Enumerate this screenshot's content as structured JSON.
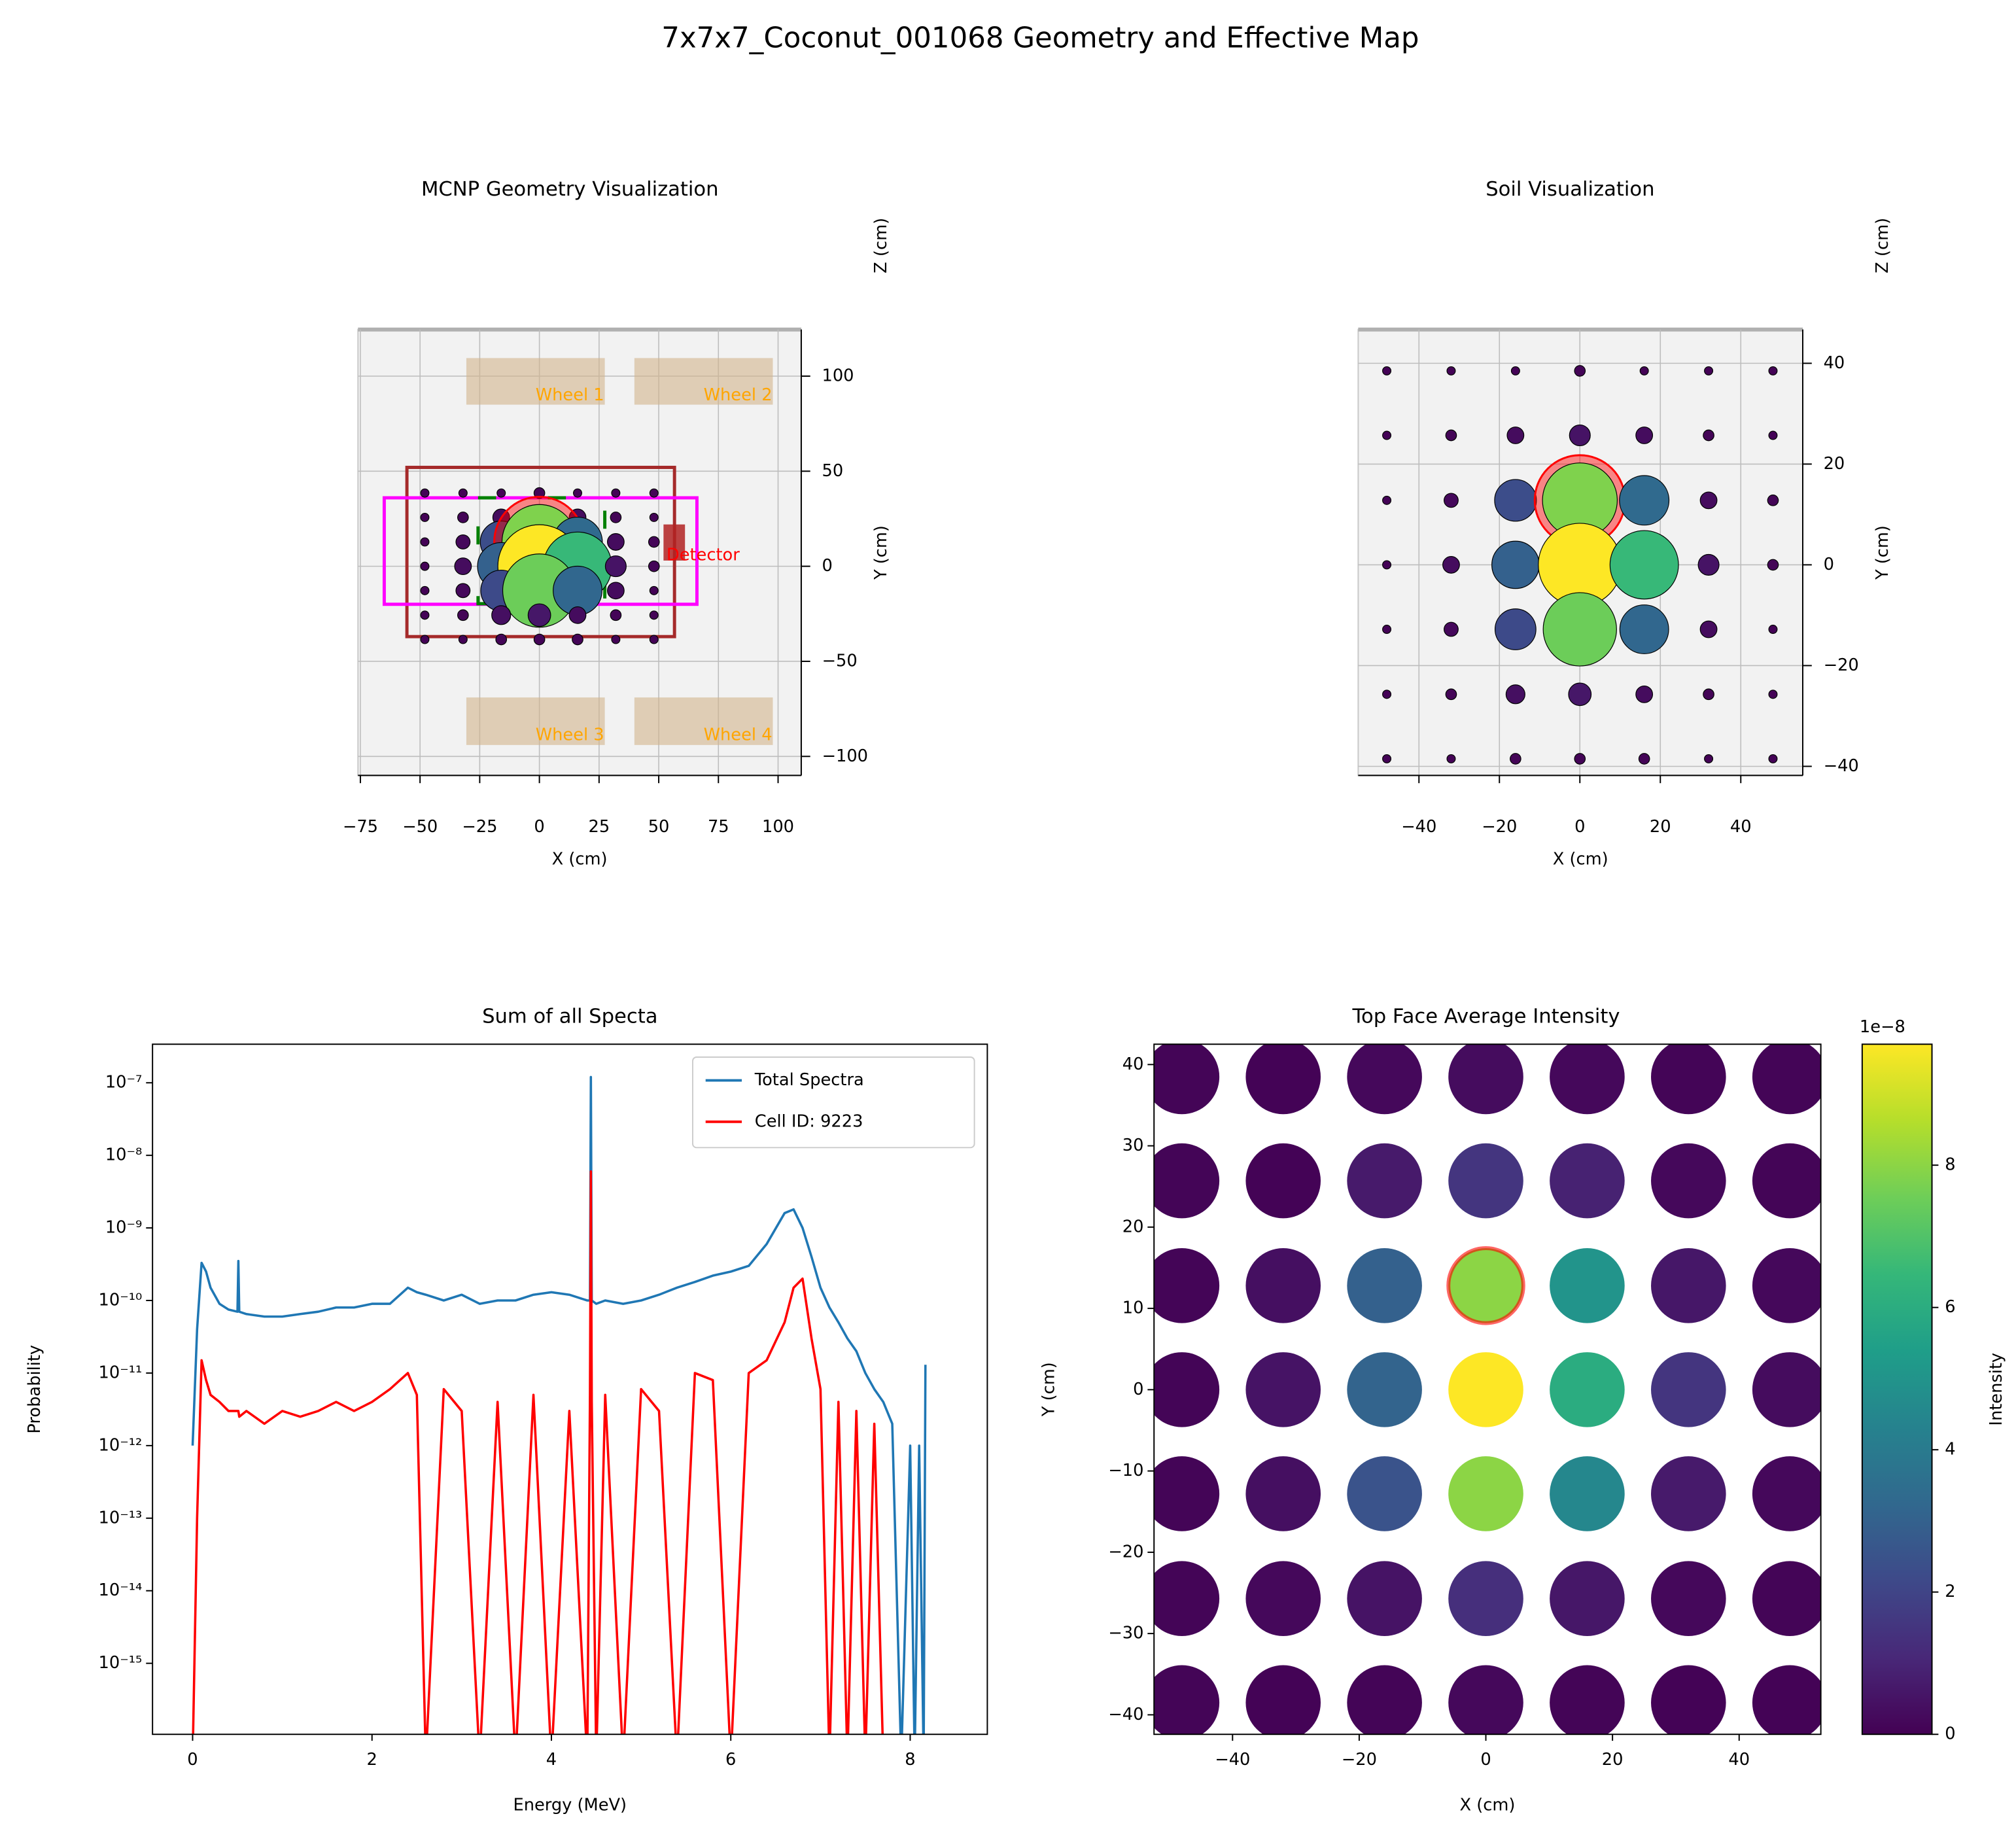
{
  "title": "7x7x7_Coconut_001068 Geometry and Effective Map",
  "chart_data": [
    {
      "type": "geometry",
      "title": "MCNP Geometry Visualization",
      "x_label": "X (cm)",
      "y_label": "Y (cm)",
      "z_label": "Z (cm)",
      "xlim": [
        -76,
        109.7
      ],
      "ylim": [
        -110,
        124.5
      ],
      "xticks": [
        {
          "value": -75,
          "label": "−75"
        },
        {
          "value": -50,
          "label": "−50"
        },
        {
          "value": -25,
          "label": "−25"
        },
        0,
        25,
        50,
        75,
        100
      ],
      "yticks": [
        100,
        50,
        0,
        {
          "value": -50,
          "label": "−50"
        },
        {
          "value": -100,
          "label": "−100"
        }
      ],
      "grid": true,
      "wheel_color": "#d2b48c",
      "wheel_label_color": "#ffa500",
      "wheels": [
        {
          "label": "Wheel 1",
          "x": [
            -30.6,
            27.4
          ],
          "y": [
            85,
            109.5
          ]
        },
        {
          "label": "Wheel 2",
          "x": [
            39.8,
            97.8
          ],
          "y": [
            85,
            109.5
          ]
        },
        {
          "label": "Wheel 3",
          "x": [
            -30.6,
            27.4
          ],
          "y": [
            -94,
            -69
          ]
        },
        {
          "label": "Wheel 4",
          "x": [
            39.8,
            97.8
          ],
          "y": [
            -94,
            -69
          ]
        }
      ],
      "regions": [
        {
          "color": "#a52a2a",
          "x": [
            -55.5,
            56.6
          ],
          "y": [
            -37,
            52
          ]
        },
        {
          "color": "#ff00ff",
          "x": [
            -65,
            66
          ],
          "y": [
            -20,
            36
          ]
        },
        {
          "color": "#008000",
          "x": [
            -25.7,
            27.4
          ],
          "y": [
            -19.7,
            36
          ],
          "dashed": true
        }
      ],
      "detector": {
        "label": "Detector",
        "color": "#b22222",
        "label_color": "#ff0000",
        "x": [
          52,
          61
        ],
        "y": [
          3,
          22
        ]
      },
      "x": [
        -48,
        -32,
        -16,
        0,
        16,
        32,
        48
      ],
      "y": [
        38.5,
        25.7,
        12.8,
        0,
        -12.8,
        -25.7,
        -38.5
      ],
      "values": [
        [
          0.05,
          0.05,
          0.05,
          0.1,
          0.05,
          0.05,
          0.05
        ],
        [
          0.05,
          0.1,
          0.3,
          0.5,
          0.3,
          0.1,
          0.05
        ],
        [
          0.05,
          0.2,
          2.3,
          7.8,
          3.3,
          0.3,
          0.1
        ],
        [
          0.05,
          0.3,
          3.0,
          9.7,
          6.5,
          0.5,
          0.1
        ],
        [
          0.05,
          0.2,
          2.2,
          7.5,
          3.2,
          0.3,
          0.05
        ],
        [
          0.05,
          0.1,
          0.4,
          0.6,
          0.3,
          0.1,
          0.05
        ],
        [
          0.05,
          0.05,
          0.1,
          0.1,
          0.1,
          0.05,
          0.05
        ]
      ],
      "clim": [
        0,
        9.7
      ],
      "colormap": "viridis",
      "highlight": {
        "row": 2,
        "col": 3,
        "color": "#ff0000"
      }
    },
    {
      "type": "soil",
      "title": "Soil Visualization",
      "x_label": "X (cm)",
      "y_label": "Y (cm)",
      "z_label": "Z (cm)",
      "xlim": [
        -55.1,
        55.4
      ],
      "ylim": [
        -41.8,
        46.7
      ],
      "xticks": [
        {
          "value": -40,
          "label": "−40"
        },
        {
          "value": -20,
          "label": "−20"
        },
        0,
        20,
        40
      ],
      "yticks": [
        40,
        20,
        0,
        {
          "value": -20,
          "label": "−20"
        },
        {
          "value": -40,
          "label": "−40"
        }
      ],
      "grid": true,
      "x": [
        -48,
        -32,
        -16,
        0,
        16,
        32,
        48
      ],
      "y": [
        38.5,
        25.7,
        12.8,
        0,
        -12.8,
        -25.7,
        -38.5
      ],
      "values": [
        [
          0.05,
          0.05,
          0.05,
          0.1,
          0.05,
          0.05,
          0.05
        ],
        [
          0.05,
          0.1,
          0.3,
          0.5,
          0.3,
          0.1,
          0.05
        ],
        [
          0.05,
          0.2,
          2.3,
          7.8,
          3.3,
          0.3,
          0.1
        ],
        [
          0.05,
          0.3,
          3.0,
          9.7,
          6.5,
          0.5,
          0.1
        ],
        [
          0.05,
          0.2,
          2.2,
          7.5,
          3.2,
          0.3,
          0.05
        ],
        [
          0.05,
          0.1,
          0.4,
          0.6,
          0.3,
          0.1,
          0.05
        ],
        [
          0.05,
          0.05,
          0.1,
          0.1,
          0.1,
          0.05,
          0.05
        ]
      ],
      "clim": [
        0,
        9.7
      ],
      "colormap": "viridis",
      "highlight": {
        "row": 2,
        "col": 3,
        "color": "#ff0000"
      }
    },
    {
      "type": "line",
      "title": "Sum of all Specta",
      "x_label": "Energy (MeV)",
      "y_label": "Probability",
      "log_y": true,
      "legend": "upper right",
      "xlim": [
        -0.447,
        8.86
      ],
      "ylim": [
        1.05e-16,
        3.4e-07
      ],
      "xticks": [
        0,
        2,
        4,
        6,
        8
      ],
      "yticks": [
        {
          "value": 1e-15,
          "label": "10⁻¹⁵"
        },
        {
          "value": 1e-14,
          "label": "10⁻¹⁴"
        },
        {
          "value": 1e-13,
          "label": "10⁻¹³"
        },
        {
          "value": 1e-12,
          "label": "10⁻¹²"
        },
        {
          "value": 1e-11,
          "label": "10⁻¹¹"
        },
        {
          "value": 1e-10,
          "label": "10⁻¹⁰"
        },
        {
          "value": 1e-09,
          "label": "10⁻⁹"
        },
        {
          "value": 1e-08,
          "label": "10⁻⁸"
        },
        {
          "value": 1e-07,
          "label": "10⁻⁷"
        }
      ],
      "x": [
        0,
        0.05,
        0.1,
        0.15,
        0.2,
        0.3,
        0.4,
        0.5,
        0.51,
        0.52,
        0.6,
        0.8,
        1.0,
        1.2,
        1.4,
        1.6,
        1.8,
        2.0,
        2.2,
        2.4,
        2.5,
        2.6,
        2.8,
        3.0,
        3.2,
        3.4,
        3.6,
        3.8,
        4.0,
        4.2,
        4.4,
        4.43,
        4.44,
        4.45,
        4.5,
        4.6,
        4.8,
        5.0,
        5.2,
        5.4,
        5.6,
        5.8,
        6.0,
        6.2,
        6.4,
        6.6,
        6.7,
        6.8,
        6.9,
        7.0,
        7.1,
        7.2,
        7.3,
        7.4,
        7.5,
        7.6,
        7.7,
        7.8,
        7.9,
        8.0,
        8.05,
        8.1,
        8.15,
        8.17
      ],
      "series": [
        {
          "name": "Total Spectra",
          "color": "#1f77b4",
          "values": [
            1e-12,
            4e-11,
            3.3e-10,
            2.5e-10,
            1.5e-10,
            9e-11,
            7.5e-11,
            7e-11,
            3.5e-10,
            7e-11,
            6.5e-11,
            6e-11,
            6e-11,
            6.5e-11,
            7e-11,
            8e-11,
            8e-11,
            9e-11,
            9e-11,
            1.5e-10,
            1.3e-10,
            1.2e-10,
            1e-10,
            1.2e-10,
            9e-11,
            1e-10,
            1e-10,
            1.2e-10,
            1.3e-10,
            1.2e-10,
            1e-10,
            1e-10,
            1.2e-07,
            1e-10,
            9e-11,
            1e-10,
            9e-11,
            1e-10,
            1.2e-10,
            1.5e-10,
            1.8e-10,
            2.2e-10,
            2.5e-10,
            3e-10,
            6e-10,
            1.6e-09,
            1.8e-09,
            1e-09,
            4e-10,
            1.5e-10,
            8e-11,
            5e-11,
            3e-11,
            2e-11,
            1e-11,
            6e-12,
            4e-12,
            2e-12,
            0,
            1e-12,
            0,
            1e-12,
            0,
            1.3e-11
          ]
        },
        {
          "name": "Cell ID: 9223",
          "color": "#ff0000",
          "values": [
            0,
            1e-13,
            1.5e-11,
            8e-12,
            5e-12,
            4e-12,
            3e-12,
            3e-12,
            3e-12,
            2.5e-12,
            3e-12,
            2e-12,
            3e-12,
            2.5e-12,
            3e-12,
            4e-12,
            3e-12,
            4e-12,
            6e-12,
            1e-11,
            5e-12,
            0,
            6e-12,
            3e-12,
            0,
            4e-12,
            0,
            5e-12,
            0,
            3e-12,
            0,
            5e-12,
            6e-09,
            4e-12,
            0,
            5e-12,
            0,
            6e-12,
            3e-12,
            0,
            1e-11,
            8e-12,
            0,
            1e-11,
            1.5e-11,
            5e-11,
            1.5e-10,
            2e-10,
            3e-11,
            6e-12,
            0,
            4e-12,
            0,
            3e-12,
            0,
            2e-12,
            0,
            0,
            0,
            0,
            0,
            0,
            0,
            0
          ]
        }
      ]
    },
    {
      "type": "bubble-grid",
      "title": "Top Face Average Intensity",
      "x_label": "X (cm)",
      "y_label": "Y (cm)",
      "xlim": [
        -52.4,
        52.9
      ],
      "ylim": [
        -42.4,
        42.5
      ],
      "xticks": [
        {
          "value": -40,
          "label": "−40"
        },
        {
          "value": -20,
          "label": "−20"
        },
        0,
        20,
        40
      ],
      "yticks": [
        {
          "value": -40,
          "label": "−40"
        },
        {
          "value": -30,
          "label": "−30"
        },
        {
          "value": -20,
          "label": "−20"
        },
        {
          "value": -10,
          "label": "−10"
        },
        0,
        10,
        20,
        30,
        40
      ],
      "x": [
        -48,
        -32,
        -16,
        0,
        16,
        32,
        48
      ],
      "y": [
        38.5,
        25.7,
        12.8,
        0,
        -12.8,
        -25.7,
        -38.5
      ],
      "values": [
        [
          0.1,
          0.05,
          0.2,
          0.3,
          0.2,
          0.1,
          0.1
        ],
        [
          0.1,
          0.05,
          0.7,
          1.5,
          0.9,
          0.2,
          0.1
        ],
        [
          0.1,
          0.4,
          3.0,
          8.0,
          5.0,
          0.6,
          0.2
        ],
        [
          0.1,
          0.5,
          3.1,
          9.7,
          6.0,
          1.5,
          0.3
        ],
        [
          0.1,
          0.4,
          2.5,
          8.0,
          4.5,
          0.7,
          0.2
        ],
        [
          0.1,
          0.2,
          0.5,
          1.3,
          0.6,
          0.2,
          0.1
        ],
        [
          0.1,
          0.05,
          0.1,
          0.2,
          0.1,
          0.05,
          0.05
        ]
      ],
      "clim": [
        0,
        9.7
      ],
      "colormap": "viridis",
      "highlight": {
        "row": 2,
        "col": 3,
        "color": "#ff0000"
      },
      "colorbar_label": "Intensity",
      "colorbar_offset": "1e−8",
      "cticks": [
        0,
        2,
        4,
        6,
        8
      ]
    }
  ]
}
